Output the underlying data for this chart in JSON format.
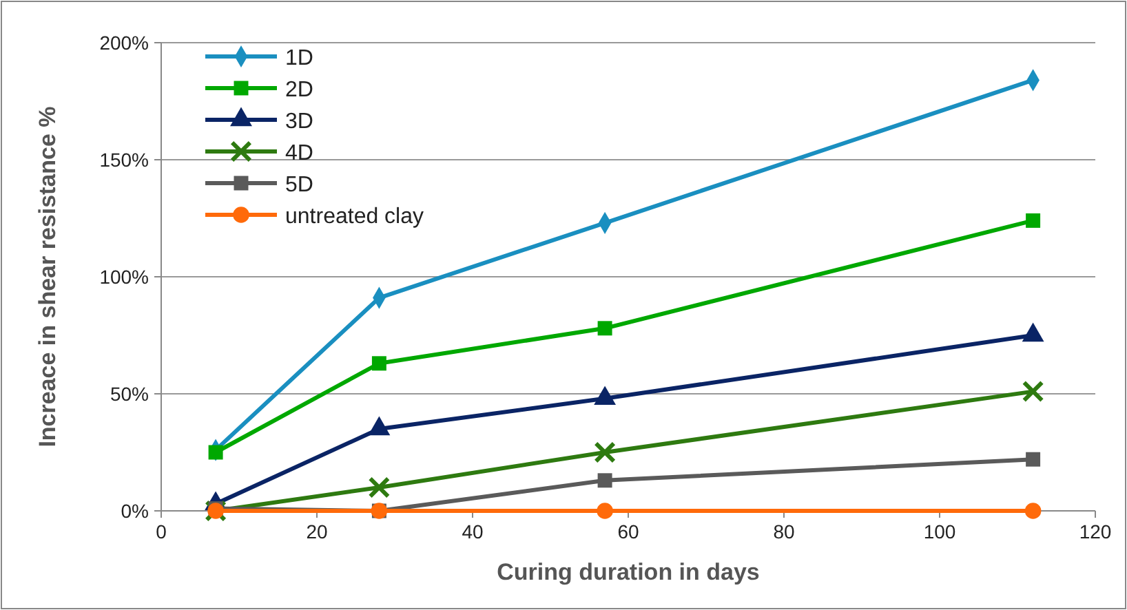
{
  "chart_data": {
    "type": "line",
    "xlabel": "Curing duration in days",
    "ylabel": "Increace in shear resistance %",
    "x": [
      7,
      28,
      57,
      112
    ],
    "series": [
      {
        "name": "1D",
        "color": "#1a8fc0",
        "marker": "diamond",
        "values": [
          26,
          91,
          123,
          184
        ]
      },
      {
        "name": "2D",
        "color": "#00a800",
        "marker": "square",
        "values": [
          25,
          63,
          78,
          124
        ]
      },
      {
        "name": "3D",
        "color": "#0a2465",
        "marker": "triangle",
        "values": [
          3,
          35,
          48,
          75
        ]
      },
      {
        "name": "4D",
        "color": "#2e7a10",
        "marker": "cross",
        "values": [
          0,
          10,
          25,
          51
        ]
      },
      {
        "name": "5D",
        "color": "#5a5a5a",
        "marker": "square",
        "values": [
          1,
          0,
          13,
          22
        ]
      },
      {
        "name": "untreated clay",
        "color": "#ff6a0a",
        "marker": "circle",
        "values": [
          0,
          0,
          0,
          0
        ]
      }
    ],
    "xlim": [
      0,
      120
    ],
    "xticks": [
      0,
      20,
      40,
      60,
      80,
      100,
      120
    ],
    "ylim": [
      0,
      200
    ],
    "yticks": [
      {
        "value": 0,
        "label": "0%"
      },
      {
        "value": 50,
        "label": "50%"
      },
      {
        "value": 100,
        "label": "100%"
      },
      {
        "value": 150,
        "label": "150%"
      },
      {
        "value": 200,
        "label": "200%"
      }
    ],
    "grid": "y",
    "legend": "top left"
  }
}
